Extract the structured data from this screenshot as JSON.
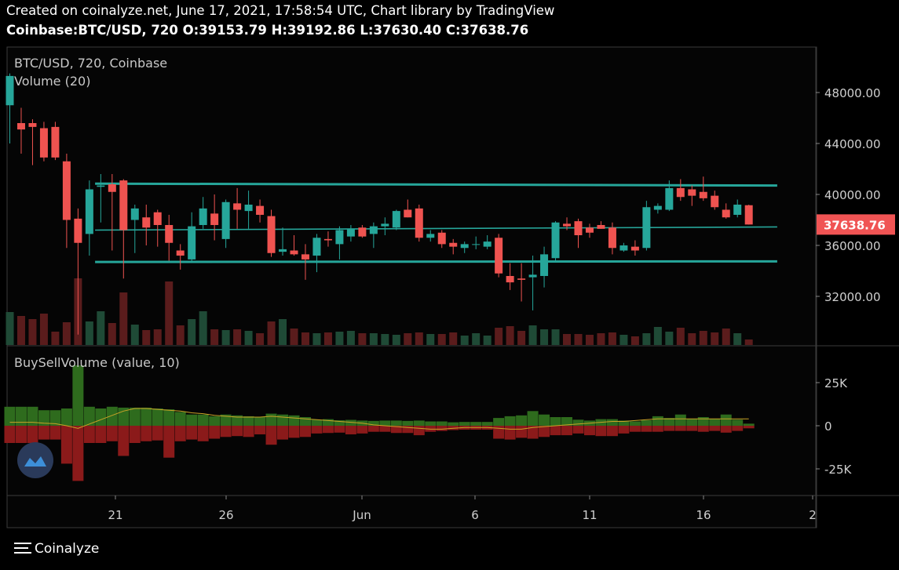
{
  "header": {
    "created": "Created on coinalyze.net, June 17, 2021, 17:58:54 UTC, Chart library by TradingView",
    "symbol": "Coinbase:BTC/USD, 720",
    "o_label": "O:",
    "o_value": "39153.79",
    "h_label": "H:",
    "h_value": "39192.86",
    "l_label": "L:",
    "l_value": "37630.40",
    "c_label": "C:",
    "c_value": "37638.76"
  },
  "footer": {
    "brand": "Coinalyze"
  },
  "colors": {
    "up": "#26a69a",
    "down": "#ef5350",
    "vol_up": "#1f4a36",
    "vol_down": "#5a1c1c",
    "buy": "#2e6b1d",
    "sell": "#8b1a1a",
    "channel": "#26a69a",
    "ma": "#c9a227",
    "price_tag": "#f05454",
    "logo_bg": "#2a3a5a"
  },
  "chart_data": [
    {
      "type": "candlestick",
      "title": "BTC/USD, 720, Coinbase",
      "indicator": "Volume (20)",
      "y_ticks": [
        "48000.00",
        "44000.00",
        "40000.00",
        "36000.00",
        "32000.00"
      ],
      "x_ticks": [
        "21",
        "26",
        "Jun",
        "6",
        "11",
        "16",
        "2"
      ],
      "last_price": "37638.76",
      "ylim": [
        29500,
        50500
      ],
      "ohlc": [
        {
          "o": 47000,
          "h": 49500,
          "l": 44000,
          "c": 49300
        },
        {
          "o": 45600,
          "h": 46800,
          "l": 43200,
          "c": 45100
        },
        {
          "o": 45600,
          "h": 45900,
          "l": 42300,
          "c": 45300
        },
        {
          "o": 45200,
          "h": 45700,
          "l": 42600,
          "c": 42900
        },
        {
          "o": 45300,
          "h": 45700,
          "l": 42700,
          "c": 42900
        },
        {
          "o": 42600,
          "h": 43200,
          "l": 35800,
          "c": 38000
        },
        {
          "o": 38100,
          "h": 38900,
          "l": 29000,
          "c": 36200
        },
        {
          "o": 36900,
          "h": 41100,
          "l": 35200,
          "c": 40400
        },
        {
          "o": 40600,
          "h": 41600,
          "l": 37800,
          "c": 40700
        },
        {
          "o": 40800,
          "h": 41600,
          "l": 35600,
          "c": 40200
        },
        {
          "o": 41100,
          "h": 41200,
          "l": 33400,
          "c": 37200
        },
        {
          "o": 38000,
          "h": 39200,
          "l": 35400,
          "c": 38900
        },
        {
          "o": 38200,
          "h": 39200,
          "l": 36000,
          "c": 37400
        },
        {
          "o": 38600,
          "h": 38800,
          "l": 35900,
          "c": 37600
        },
        {
          "o": 37600,
          "h": 38400,
          "l": 34800,
          "c": 36200
        },
        {
          "o": 35600,
          "h": 36100,
          "l": 34100,
          "c": 35200
        },
        {
          "o": 34900,
          "h": 38600,
          "l": 34700,
          "c": 37500
        },
        {
          "o": 37600,
          "h": 39800,
          "l": 37300,
          "c": 38900
        },
        {
          "o": 38500,
          "h": 40000,
          "l": 36400,
          "c": 37600
        },
        {
          "o": 36500,
          "h": 39600,
          "l": 35800,
          "c": 39400
        },
        {
          "o": 39300,
          "h": 40500,
          "l": 37300,
          "c": 38800
        },
        {
          "o": 38700,
          "h": 40300,
          "l": 37300,
          "c": 39200
        },
        {
          "o": 39100,
          "h": 39600,
          "l": 37800,
          "c": 38400
        },
        {
          "o": 38300,
          "h": 38800,
          "l": 35100,
          "c": 35400
        },
        {
          "o": 35500,
          "h": 37400,
          "l": 35200,
          "c": 35700
        },
        {
          "o": 35600,
          "h": 36800,
          "l": 35200,
          "c": 35300
        },
        {
          "o": 35300,
          "h": 36100,
          "l": 33300,
          "c": 34900
        },
        {
          "o": 35200,
          "h": 36900,
          "l": 33900,
          "c": 36600
        },
        {
          "o": 36500,
          "h": 37100,
          "l": 35900,
          "c": 36400
        },
        {
          "o": 36100,
          "h": 37500,
          "l": 34900,
          "c": 37200
        },
        {
          "o": 36700,
          "h": 37600,
          "l": 36300,
          "c": 37300
        },
        {
          "o": 37400,
          "h": 37600,
          "l": 36600,
          "c": 36700
        },
        {
          "o": 36900,
          "h": 37800,
          "l": 35800,
          "c": 37500
        },
        {
          "o": 37500,
          "h": 38200,
          "l": 36800,
          "c": 37700
        },
        {
          "o": 37400,
          "h": 38800,
          "l": 37200,
          "c": 38700
        },
        {
          "o": 38800,
          "h": 39600,
          "l": 38200,
          "c": 38200
        },
        {
          "o": 38900,
          "h": 39200,
          "l": 36300,
          "c": 36600
        },
        {
          "o": 36600,
          "h": 37200,
          "l": 36300,
          "c": 36900
        },
        {
          "o": 37000,
          "h": 37200,
          "l": 35800,
          "c": 36100
        },
        {
          "o": 36200,
          "h": 36500,
          "l": 35300,
          "c": 35900
        },
        {
          "o": 35800,
          "h": 36300,
          "l": 35400,
          "c": 36100
        },
        {
          "o": 36100,
          "h": 36700,
          "l": 35700,
          "c": 36100
        },
        {
          "o": 35900,
          "h": 36800,
          "l": 35700,
          "c": 36300
        },
        {
          "o": 36600,
          "h": 36900,
          "l": 33500,
          "c": 33800
        },
        {
          "o": 33600,
          "h": 34600,
          "l": 32500,
          "c": 33100
        },
        {
          "o": 33400,
          "h": 34600,
          "l": 31600,
          "c": 33300
        },
        {
          "o": 33500,
          "h": 35200,
          "l": 30900,
          "c": 33700
        },
        {
          "o": 33600,
          "h": 35900,
          "l": 32700,
          "c": 35300
        },
        {
          "o": 35000,
          "h": 37900,
          "l": 34800,
          "c": 37800
        },
        {
          "o": 37700,
          "h": 38200,
          "l": 37200,
          "c": 37500
        },
        {
          "o": 37900,
          "h": 38100,
          "l": 35800,
          "c": 36800
        },
        {
          "o": 37400,
          "h": 37700,
          "l": 36600,
          "c": 37000
        },
        {
          "o": 37600,
          "h": 37900,
          "l": 37300,
          "c": 37300
        },
        {
          "o": 37400,
          "h": 37800,
          "l": 35300,
          "c": 35800
        },
        {
          "o": 35600,
          "h": 36200,
          "l": 35500,
          "c": 36000
        },
        {
          "o": 35900,
          "h": 36400,
          "l": 35200,
          "c": 35600
        },
        {
          "o": 35800,
          "h": 39500,
          "l": 35600,
          "c": 39000
        },
        {
          "o": 38800,
          "h": 39300,
          "l": 38500,
          "c": 39100
        },
        {
          "o": 38800,
          "h": 41100,
          "l": 38700,
          "c": 40500
        },
        {
          "o": 40500,
          "h": 41200,
          "l": 39500,
          "c": 39800
        },
        {
          "o": 40400,
          "h": 40700,
          "l": 39100,
          "c": 39900
        },
        {
          "o": 40200,
          "h": 41400,
          "l": 39500,
          "c": 39700
        },
        {
          "o": 39900,
          "h": 40300,
          "l": 38800,
          "c": 39000
        },
        {
          "o": 38800,
          "h": 39300,
          "l": 38100,
          "c": 38200
        },
        {
          "o": 38400,
          "h": 39600,
          "l": 38200,
          "c": 39200
        },
        {
          "o": 39154,
          "h": 39193,
          "l": 37630,
          "c": 37639
        }
      ],
      "volume": [
        0.42,
        0.37,
        0.33,
        0.4,
        0.17,
        0.29,
        0.85,
        0.3,
        0.43,
        0.28,
        0.67,
        0.26,
        0.19,
        0.2,
        0.81,
        0.25,
        0.33,
        0.43,
        0.2,
        0.19,
        0.2,
        0.18,
        0.15,
        0.3,
        0.33,
        0.21,
        0.16,
        0.15,
        0.16,
        0.17,
        0.18,
        0.15,
        0.15,
        0.14,
        0.13,
        0.15,
        0.16,
        0.14,
        0.14,
        0.16,
        0.12,
        0.15,
        0.12,
        0.22,
        0.24,
        0.18,
        0.25,
        0.2,
        0.2,
        0.14,
        0.14,
        0.13,
        0.15,
        0.16,
        0.13,
        0.11,
        0.15,
        0.23,
        0.17,
        0.22,
        0.15,
        0.18,
        0.16,
        0.21,
        0.15,
        0.07
      ],
      "channel_lines": [
        {
          "x0": 7.5,
          "y0": 40850,
          "x1": 67.5,
          "y1": 40700
        },
        {
          "x0": 7.5,
          "y0": 37200,
          "x1": 67.5,
          "y1": 37450
        },
        {
          "x0": 7.5,
          "y0": 34700,
          "x1": 67.5,
          "y1": 34750
        }
      ]
    },
    {
      "type": "bar",
      "title": "BuySellVolume (value, 10)",
      "y_ticks": [
        "25K",
        "0",
        "-25K"
      ],
      "ylim": [
        -42000,
        42000
      ],
      "buy": [
        11000,
        11000,
        11000,
        9000,
        9000,
        10000,
        35000,
        11000,
        10000,
        11000,
        10500,
        10500,
        10500,
        10000,
        9500,
        8000,
        6500,
        6500,
        5500,
        6500,
        6000,
        5500,
        5000,
        7000,
        6500,
        6000,
        5000,
        3500,
        3800,
        3200,
        3400,
        3000,
        2800,
        3000,
        3000,
        2800,
        3000,
        2500,
        2500,
        2000,
        2200,
        2200,
        2200,
        4500,
        5500,
        6000,
        8500,
        6500,
        5000,
        5000,
        3500,
        3000,
        3800,
        3800,
        3000,
        2500,
        3200,
        5500,
        4500,
        6500,
        4000,
        5000,
        4000,
        6500,
        3500,
        1200
      ],
      "sell": [
        -10000,
        -10000,
        -10000,
        -8000,
        -8000,
        -22000,
        -32000,
        -10000,
        -10000,
        -9000,
        -17500,
        -10000,
        -9000,
        -8500,
        -18500,
        -9000,
        -8000,
        -9000,
        -7500,
        -6500,
        -6000,
        -6500,
        -5000,
        -11000,
        -8000,
        -7000,
        -6500,
        -4500,
        -4200,
        -4000,
        -5000,
        -4500,
        -3500,
        -3500,
        -4200,
        -4200,
        -5500,
        -3500,
        -3000,
        -2500,
        -2300,
        -2300,
        -2300,
        -7500,
        -8000,
        -7000,
        -7500,
        -6500,
        -5500,
        -5500,
        -4500,
        -5500,
        -6000,
        -6000,
        -4500,
        -3500,
        -3500,
        -3500,
        -3000,
        -3000,
        -3000,
        -3500,
        -3000,
        -4000,
        -3000,
        -1500
      ],
      "ma": [
        2000,
        2000,
        2000,
        1500,
        1200,
        0,
        -1500,
        1000,
        3500,
        6000,
        8500,
        10000,
        10000,
        9500,
        9000,
        8500,
        7500,
        7000,
        6000,
        5500,
        5000,
        5000,
        5000,
        5500,
        5000,
        4500,
        4000,
        3500,
        3000,
        2500,
        2000,
        1500,
        500,
        0,
        -500,
        -1000,
        -1500,
        -2000,
        -2000,
        -1500,
        -1000,
        -1000,
        -1000,
        -1500,
        -2000,
        -2000,
        -1000,
        -500,
        0,
        500,
        1000,
        1500,
        2000,
        2500,
        2500,
        3000,
        3500,
        4000,
        4000,
        4000,
        4000,
        4000,
        4000,
        4000,
        4000,
        4000
      ]
    }
  ]
}
